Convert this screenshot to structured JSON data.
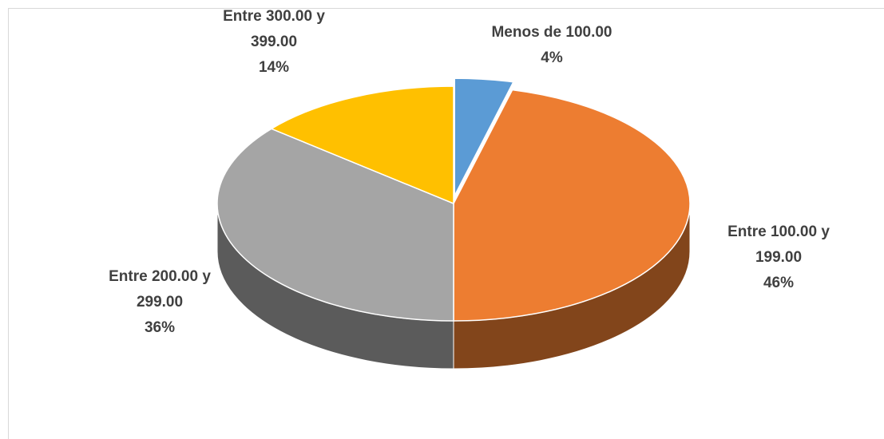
{
  "chart_data": {
    "type": "pie",
    "three_d": true,
    "categories": [
      "Menos de 100.00",
      "Entre 100.00 y 199.00",
      "Entre 200.00 y 299.00",
      "Entre 300.00 y 399.00"
    ],
    "values": [
      4,
      46,
      36,
      14
    ],
    "value_labels": [
      "4%",
      "46%",
      "36%",
      "14%"
    ],
    "colors": [
      "#5b9bd5",
      "#ed7d31",
      "#a5a5a5",
      "#ffc000"
    ],
    "exploded": [
      0
    ]
  }
}
